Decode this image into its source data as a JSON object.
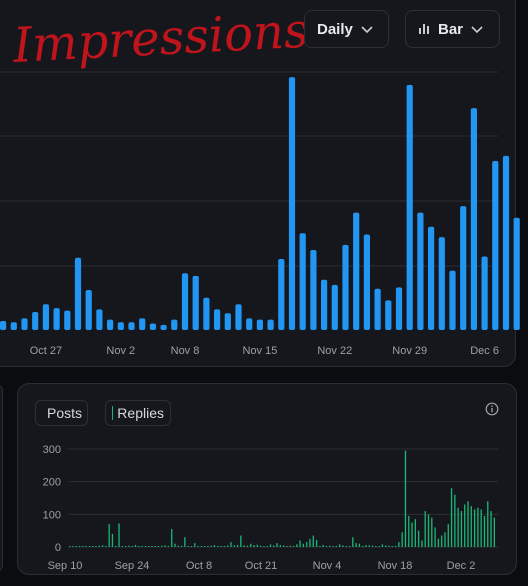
{
  "top_chart": {
    "handwritten_title": "Impressions",
    "interval_dropdown": {
      "value": "Daily"
    },
    "type_dropdown": {
      "value": "Bar",
      "icon": "bar-chart-icon"
    },
    "colors": {
      "bar": "#2196f3",
      "grid": "#2b2d33",
      "tick": "#9aa0aa",
      "title": "#c0141c"
    }
  },
  "bottom_chart": {
    "legend": [
      {
        "name": "Posts",
        "color": "#2196f3"
      },
      {
        "name": "Replies",
        "color": "#17b978"
      }
    ],
    "info_icon": "info-icon",
    "colors": {
      "replies": "#17b978",
      "grid": "#2b2d33",
      "tick": "#9aa0aa"
    }
  },
  "chart_data": [
    {
      "type": "bar",
      "title": "Impressions",
      "x_tick_labels": [
        "Oct 27",
        "Nov 2",
        "Nov 8",
        "Nov 15",
        "Nov 22",
        "Nov 29",
        "Dec 6"
      ],
      "grid": true,
      "series": [
        {
          "values": [
            7,
            6,
            9,
            14,
            20,
            17,
            15,
            56,
            31,
            16,
            8,
            6,
            6,
            9,
            5,
            4,
            8,
            44,
            42,
            25,
            16,
            13,
            20,
            9,
            8,
            8,
            55,
            196,
            75,
            62,
            39,
            35,
            66,
            91,
            74,
            32,
            23,
            33,
            190,
            91,
            80,
            72,
            46,
            96,
            172,
            57,
            131,
            135,
            87
          ]
        }
      ]
    },
    {
      "type": "bar",
      "series": [
        {
          "name": "Replies",
          "values": [
            3,
            2,
            3,
            2,
            2,
            1,
            3,
            2,
            3,
            4,
            5,
            2,
            70,
            40,
            3,
            72,
            2,
            3,
            4,
            2,
            6,
            3,
            2,
            1,
            2,
            3,
            2,
            3,
            4,
            5,
            2,
            55,
            10,
            4,
            2,
            30,
            3,
            2,
            12,
            2,
            1,
            3,
            2,
            4,
            6,
            2,
            3,
            1,
            5,
            15,
            5,
            6,
            35,
            5,
            4,
            10,
            6,
            7,
            4,
            2,
            3,
            8,
            5,
            12,
            6,
            5,
            3,
            4,
            2,
            8,
            20,
            10,
            15,
            25,
            35,
            22,
            2,
            6,
            3,
            4,
            3,
            2,
            8,
            5,
            3,
            2,
            30,
            12,
            10,
            3,
            6,
            5,
            4,
            2,
            3,
            8,
            5,
            4,
            3,
            2,
            15,
            45,
            295,
            95,
            75,
            85,
            50,
            20,
            110,
            100,
            90,
            60,
            25,
            35,
            45,
            70,
            180,
            160,
            120,
            110,
            130,
            140,
            125,
            115,
            120,
            115,
            95,
            140,
            110,
            90
          ]
        }
      ],
      "y_tick_labels": [
        "300",
        "200",
        "100",
        "0"
      ],
      "ylim": [
        0,
        300
      ],
      "x_tick_labels": [
        "Sep 10",
        "Sep 24",
        "Oct 8",
        "Oct 21",
        "Nov 4",
        "Nov 18",
        "Dec 2"
      ],
      "grid": true
    }
  ]
}
